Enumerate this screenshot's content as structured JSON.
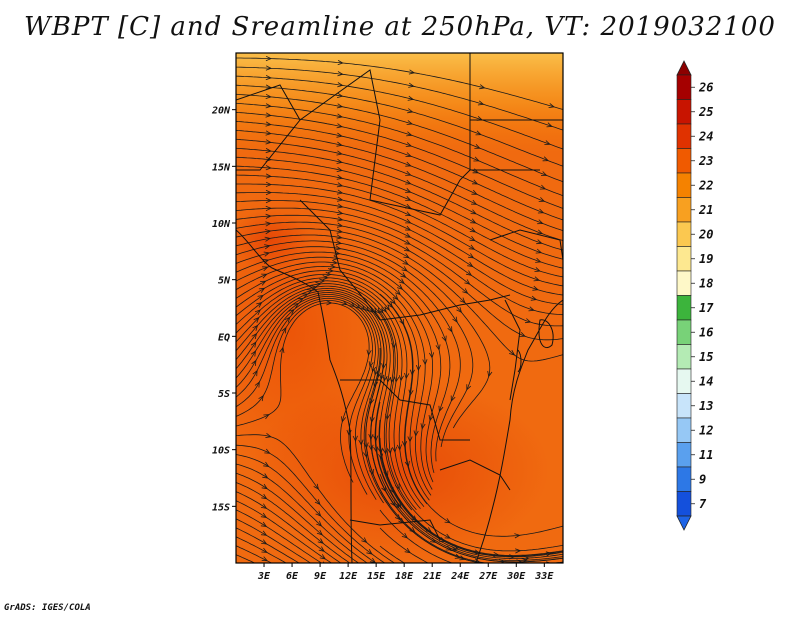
{
  "title": "WBPT [C] and Sreamline at 250hPa, VT: 2019032100",
  "credit": "GrADS: IGES/COLA",
  "map": {
    "lon_range": [
      0,
      35
    ],
    "lat_range": [
      -20,
      25
    ],
    "lon_ticks": [
      {
        "lon": 3,
        "label": "3E"
      },
      {
        "lon": 6,
        "label": "6E"
      },
      {
        "lon": 9,
        "label": "9E"
      },
      {
        "lon": 12,
        "label": "12E"
      },
      {
        "lon": 15,
        "label": "15E"
      },
      {
        "lon": 18,
        "label": "18E"
      },
      {
        "lon": 21,
        "label": "21E"
      },
      {
        "lon": 24,
        "label": "24E"
      },
      {
        "lon": 27,
        "label": "27E"
      },
      {
        "lon": 30,
        "label": "30E"
      },
      {
        "lon": 33,
        "label": "33E"
      }
    ],
    "lat_ticks": [
      {
        "lat": 20,
        "label": "20N"
      },
      {
        "lat": 15,
        "label": "15N"
      },
      {
        "lat": 10,
        "label": "10N"
      },
      {
        "lat": 5,
        "label": "5N"
      },
      {
        "lat": 0,
        "label": "EQ"
      },
      {
        "lat": -5,
        "label": "5S"
      },
      {
        "lat": -10,
        "label": "10S"
      },
      {
        "lat": -15,
        "label": "15S"
      }
    ]
  },
  "colorbar": {
    "levels": [
      "26",
      "25",
      "24",
      "23",
      "22",
      "21",
      "20",
      "19",
      "18",
      "17",
      "16",
      "15",
      "14",
      "13",
      "12",
      "11",
      "9",
      "7"
    ],
    "colors": [
      "#a50000",
      "#c81400",
      "#e03200",
      "#f05a00",
      "#f58200",
      "#f8a020",
      "#fbc850",
      "#fde890",
      "#fef8c8",
      "#3cb43c",
      "#78d278",
      "#b4ebb4",
      "#e6f8f0",
      "#c8e4fa",
      "#96c8f5",
      "#5aa0ee",
      "#2d78e6",
      "#1450dc"
    ],
    "top_cap_color": "#8c0000",
    "bottom_cap_color": "#1e64e6"
  }
}
